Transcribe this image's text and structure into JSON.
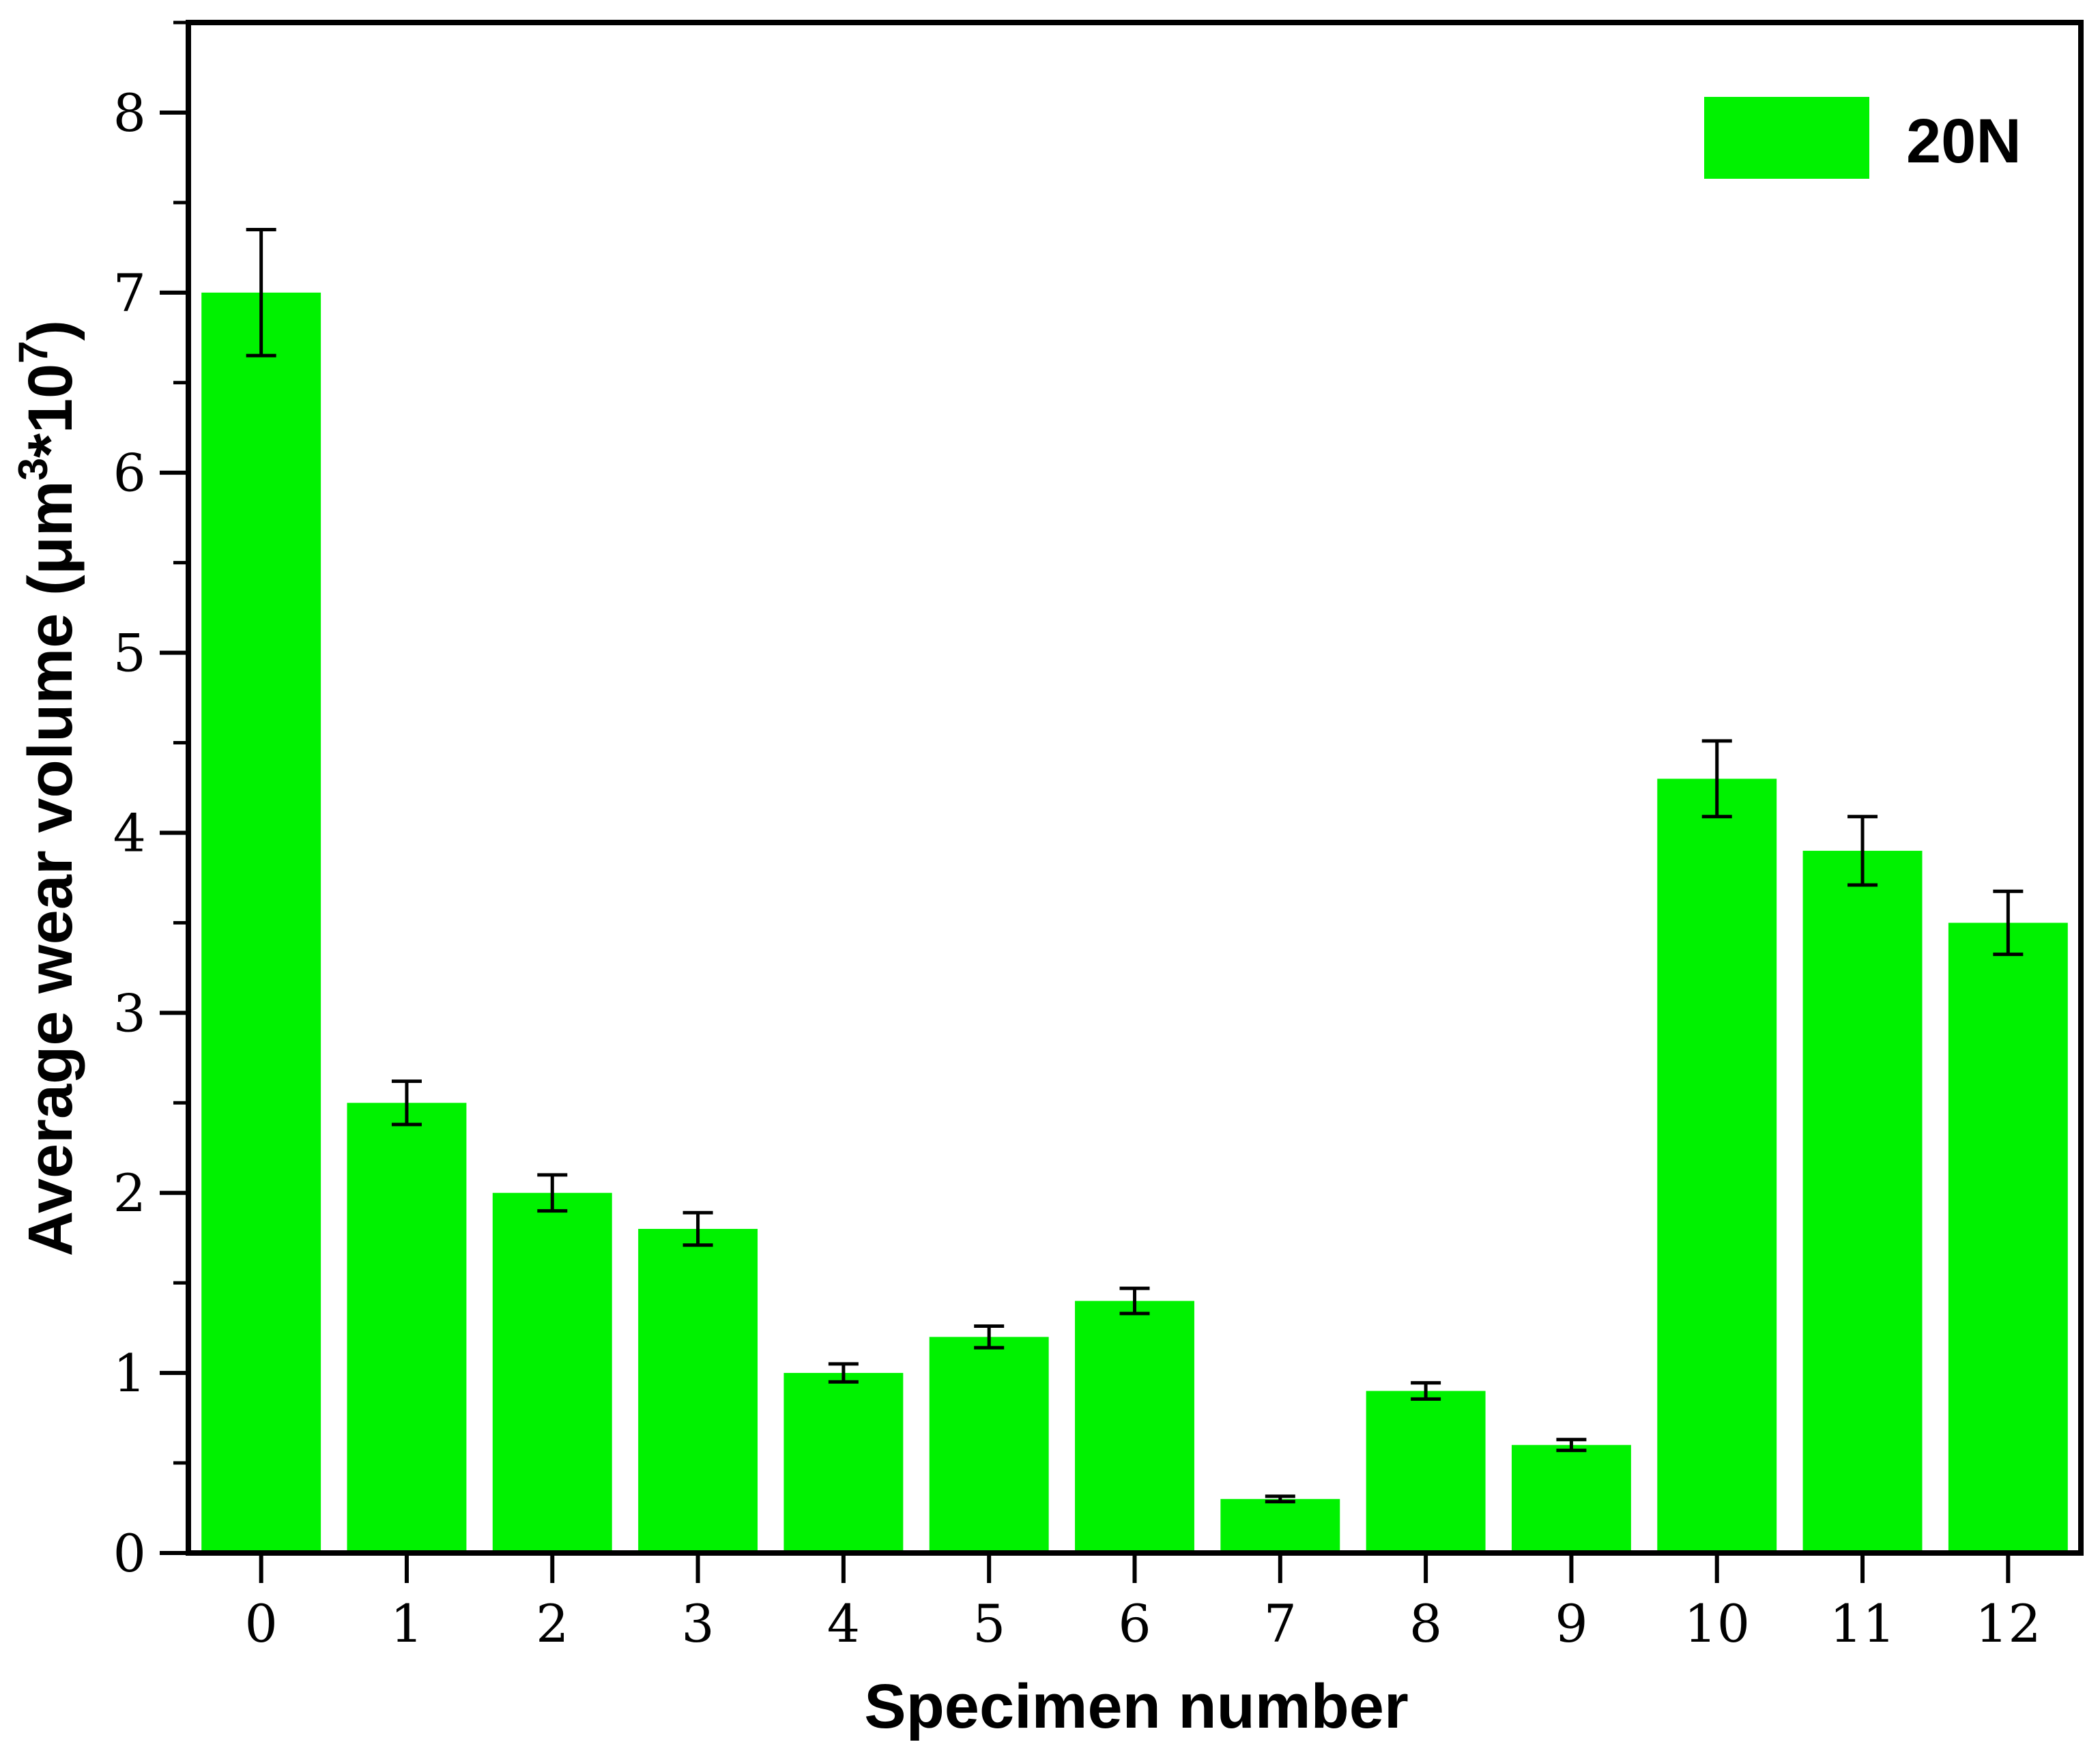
{
  "chart_data": {
    "type": "bar",
    "categories": [
      "0",
      "1",
      "2",
      "3",
      "4",
      "5",
      "6",
      "7",
      "8",
      "9",
      "10",
      "11",
      "12"
    ],
    "series": [
      {
        "name": "20N",
        "color": "#00f200",
        "values": [
          7.0,
          2.5,
          2.0,
          1.8,
          1.0,
          1.2,
          1.4,
          0.3,
          0.9,
          0.6,
          4.3,
          3.9,
          3.5
        ],
        "error": [
          0.35,
          0.12,
          0.1,
          0.09,
          0.05,
          0.06,
          0.07,
          0.015,
          0.045,
          0.03,
          0.21,
          0.19,
          0.175
        ]
      }
    ],
    "title": "",
    "xlabel": "Specimen number",
    "ylabel_main": "Average wear volume (μm",
    "ylabel_sup1": "3",
    "ylabel_mid": "*10",
    "ylabel_sup2": "7",
    "ylabel_end": ")",
    "ylim": [
      0,
      8.5
    ],
    "yticks": [
      "0",
      "1",
      "2",
      "3",
      "4",
      "5",
      "6",
      "7",
      "8"
    ],
    "grid": false,
    "legend_position": "top-right"
  }
}
